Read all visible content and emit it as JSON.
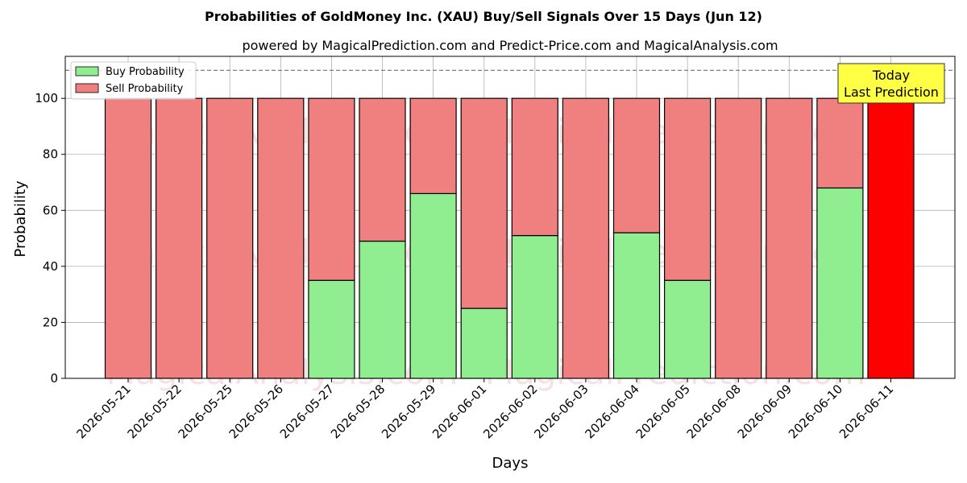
{
  "chart_data": {
    "type": "bar",
    "title": "Probabilities of GoldMoney Inc. (XAU) Buy/Sell Signals Over 15 Days (Jun 12)",
    "subtitle": "powered by MagicalPrediction.com and Predict-Price.com and MagicalAnalysis.com",
    "xlabel": "Days",
    "ylabel": "Probability",
    "ylim": [
      0,
      115
    ],
    "yticks": [
      0,
      20,
      40,
      60,
      80,
      100
    ],
    "grid": true,
    "stacked": true,
    "categories": [
      "2026-05-21",
      "2026-05-22",
      "2026-05-25",
      "2026-05-26",
      "2026-05-27",
      "2026-05-28",
      "2026-05-29",
      "2026-06-01",
      "2026-06-02",
      "2026-06-03",
      "2026-06-04",
      "2026-06-05",
      "2026-06-08",
      "2026-06-09",
      "2026-06-10",
      "2026-06-11"
    ],
    "series": [
      {
        "name": "Buy Probability",
        "color": "#90ee90",
        "values": [
          0,
          0,
          0,
          0,
          35,
          49,
          66,
          25,
          51,
          0,
          52,
          35,
          0,
          0,
          68,
          0
        ]
      },
      {
        "name": "Sell Probability",
        "color": "#f08080",
        "values": [
          100,
          100,
          100,
          100,
          65,
          51,
          34,
          75,
          49,
          100,
          48,
          65,
          100,
          100,
          32,
          100
        ]
      }
    ],
    "highlight": {
      "category": "2026-06-11",
      "color": "#ff0000",
      "value": 100
    },
    "reference_line": {
      "y": 110,
      "style": "dashed",
      "color": "#808080"
    },
    "legend": {
      "placement": "top-left"
    },
    "annotation": {
      "lines": [
        "Today",
        "Last Prediction"
      ],
      "placement": "top-right",
      "background": "#ffff44"
    },
    "watermarks": [
      "MagicalAnalysis.com",
      "MagicalPrediction.com"
    ]
  }
}
